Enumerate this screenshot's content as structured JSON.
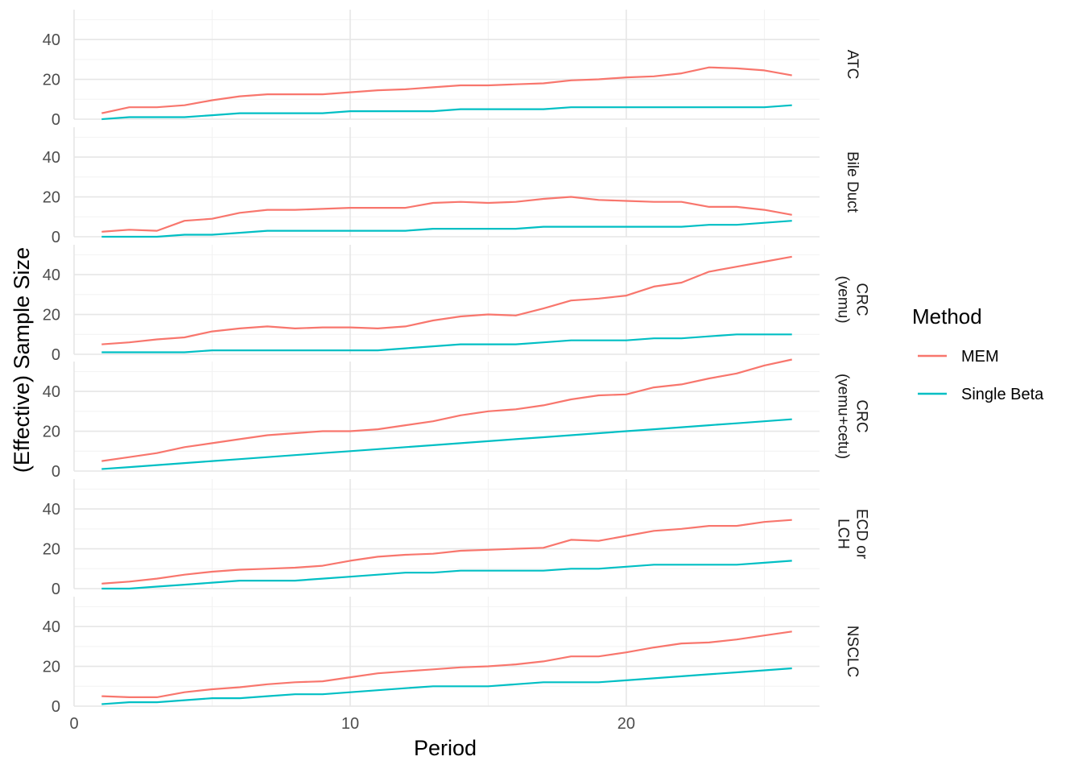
{
  "chart_data": {
    "type": "line",
    "facet_by": "panel",
    "xlabel": "Period",
    "ylabel": "(Effective) Sample Size",
    "xlim": [
      0,
      27
    ],
    "ylim": [
      0,
      55
    ],
    "x_ticks": [
      0,
      10,
      20
    ],
    "y_ticks": [
      0,
      20,
      40
    ],
    "grid": true,
    "legend": {
      "title": "Method",
      "position": "right",
      "entries": [
        {
          "name": "MEM",
          "color": "#F8766D"
        },
        {
          "name": "Single Beta",
          "color": "#00BFC4"
        }
      ]
    },
    "x": [
      1,
      2,
      3,
      4,
      5,
      6,
      7,
      8,
      9,
      10,
      11,
      12,
      13,
      14,
      15,
      16,
      17,
      18,
      19,
      20,
      21,
      22,
      23,
      24,
      25,
      26
    ],
    "panels": [
      {
        "label": [
          "ATC"
        ],
        "series": [
          {
            "name": "MEM",
            "values": [
              3,
              6,
              6,
              7,
              9.5,
              11.5,
              12.5,
              12.5,
              12.5,
              13.5,
              14.5,
              15,
              16,
              17,
              17,
              17.5,
              18,
              19.5,
              20,
              21,
              21.5,
              23,
              26,
              25.5,
              24.5,
              22
            ]
          },
          {
            "name": "Single Beta",
            "values": [
              0,
              1,
              1,
              1,
              2,
              3,
              3,
              3,
              3,
              4,
              4,
              4,
              4,
              5,
              5,
              5,
              5,
              6,
              6,
              6,
              6,
              6,
              6,
              6,
              6,
              7
            ]
          }
        ]
      },
      {
        "label": [
          "Bile Duct"
        ],
        "series": [
          {
            "name": "MEM",
            "values": [
              2.5,
              3.5,
              3,
              8,
              9,
              12,
              13.5,
              13.5,
              14,
              14.5,
              14.5,
              14.5,
              17,
              17.5,
              17,
              17.5,
              19,
              20,
              18.5,
              18,
              17.5,
              17.5,
              15,
              15,
              13.5,
              11
            ]
          },
          {
            "name": "Single Beta",
            "values": [
              0,
              0,
              0,
              1,
              1,
              2,
              3,
              3,
              3,
              3,
              3,
              3,
              4,
              4,
              4,
              4,
              5,
              5,
              5,
              5,
              5,
              5,
              6,
              6,
              7,
              8
            ]
          }
        ]
      },
      {
        "label": [
          "CRC",
          "(vemu)"
        ],
        "series": [
          {
            "name": "MEM",
            "values": [
              5,
              6,
              7.5,
              8.5,
              11.5,
              13,
              14,
              13,
              13.5,
              13.5,
              13,
              14,
              17,
              19,
              20,
              19.5,
              23,
              27,
              28,
              29.5,
              34,
              36,
              41.5,
              44,
              46.5,
              49
            ]
          },
          {
            "name": "Single Beta",
            "values": [
              1,
              1,
              1,
              1,
              2,
              2,
              2,
              2,
              2,
              2,
              2,
              3,
              4,
              5,
              5,
              5,
              6,
              7,
              7,
              7,
              8,
              8,
              9,
              10,
              10,
              10
            ]
          }
        ]
      },
      {
        "label": [
          "CRC",
          "(vemu+cetu)"
        ],
        "series": [
          {
            "name": "MEM",
            "values": [
              5,
              7,
              9,
              12,
              14,
              16,
              18,
              19,
              20,
              20,
              21,
              23,
              25,
              28,
              30,
              31,
              33,
              36,
              38,
              38.5,
              42,
              43.5,
              46.5,
              49,
              53,
              56
            ]
          },
          {
            "name": "Single Beta",
            "values": [
              1,
              2,
              3,
              4,
              5,
              6,
              7,
              8,
              9,
              10,
              11,
              12,
              13,
              14,
              15,
              16,
              17,
              18,
              19,
              20,
              21,
              22,
              23,
              24,
              25,
              26
            ]
          }
        ]
      },
      {
        "label": [
          "ECD or",
          "LCH"
        ],
        "series": [
          {
            "name": "MEM",
            "values": [
              2.5,
              3.5,
              5,
              7,
              8.5,
              9.5,
              10,
              10.5,
              11.5,
              14,
              16,
              17,
              17.5,
              19,
              19.5,
              20,
              20.5,
              24.5,
              24,
              26.5,
              29,
              30,
              31.5,
              31.5,
              33.5,
              34.5
            ]
          },
          {
            "name": "Single Beta",
            "values": [
              0,
              0,
              1,
              2,
              3,
              4,
              4,
              4,
              5,
              6,
              7,
              8,
              8,
              9,
              9,
              9,
              9,
              10,
              10,
              11,
              12,
              12,
              12,
              12,
              13,
              14
            ]
          }
        ]
      },
      {
        "label": [
          "NSCLC"
        ],
        "series": [
          {
            "name": "MEM",
            "values": [
              5,
              4.5,
              4.5,
              7,
              8.5,
              9.5,
              11,
              12,
              12.5,
              14.5,
              16.5,
              17.5,
              18.5,
              19.5,
              20,
              21,
              22.5,
              25,
              25,
              27,
              29.5,
              31.5,
              32,
              33.5,
              35.5,
              37.5
            ]
          },
          {
            "name": "Single Beta",
            "values": [
              1,
              2,
              2,
              3,
              4,
              4,
              5,
              6,
              6,
              7,
              8,
              9,
              10,
              10,
              10,
              11,
              12,
              12,
              12,
              13,
              14,
              15,
              16,
              17,
              18,
              19
            ]
          }
        ]
      }
    ]
  }
}
